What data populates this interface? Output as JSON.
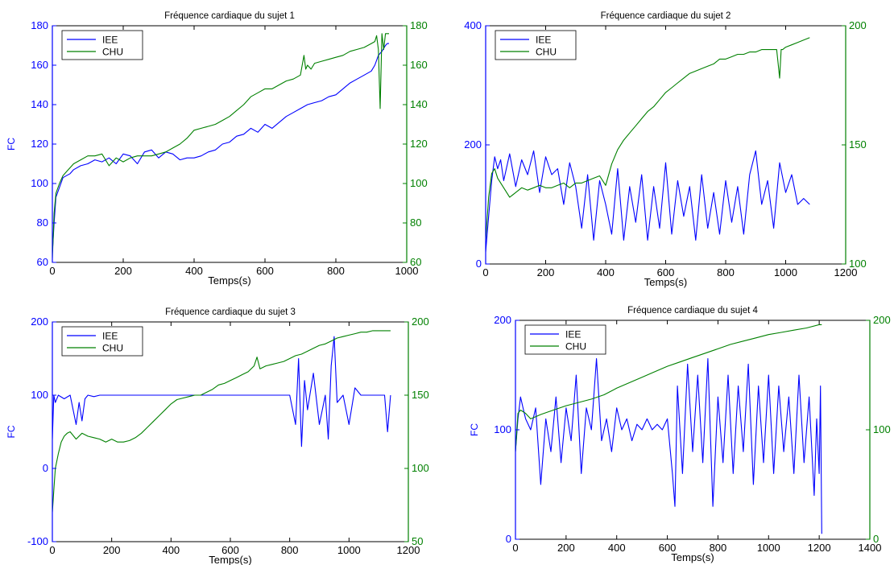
{
  "chart_data": [
    {
      "type": "line",
      "title": "Fréquence cardiaque du sujet 1",
      "xlabel": "Temps(s)",
      "ylabel": "FC",
      "xlim": [
        0,
        1000
      ],
      "xticks": [
        0,
        200,
        400,
        600,
        800,
        1000
      ],
      "ylim_left": [
        60,
        180
      ],
      "yticks_left": [
        60,
        80,
        100,
        120,
        140,
        160,
        180
      ],
      "ylim_right": [
        60,
        180
      ],
      "yticks_right": [
        60,
        80,
        100,
        120,
        140,
        160,
        180
      ],
      "legend_position": "top-left",
      "series": [
        {
          "name": "IEE",
          "axis": "left",
          "color": "#0000ff",
          "x": [
            0,
            5,
            10,
            20,
            30,
            40,
            50,
            60,
            80,
            100,
            120,
            140,
            160,
            180,
            200,
            220,
            240,
            260,
            280,
            300,
            320,
            340,
            360,
            380,
            400,
            420,
            440,
            460,
            480,
            500,
            520,
            540,
            560,
            580,
            600,
            620,
            640,
            660,
            680,
            700,
            720,
            740,
            760,
            780,
            800,
            820,
            840,
            860,
            880,
            900,
            910,
            920,
            930,
            940,
            945,
            950
          ],
          "y": [
            65,
            80,
            93,
            98,
            103,
            104,
            105,
            107,
            109,
            110,
            112,
            111,
            113,
            110,
            115,
            114,
            110,
            116,
            117,
            113,
            116,
            115,
            112,
            113,
            113,
            114,
            116,
            117,
            120,
            121,
            124,
            125,
            128,
            126,
            130,
            128,
            131,
            134,
            136,
            138,
            140,
            141,
            142,
            144,
            145,
            148,
            151,
            153,
            155,
            157,
            160,
            165,
            167,
            170,
            171,
            171
          ]
        },
        {
          "name": "CHU",
          "axis": "right",
          "color": "#008000",
          "x": [
            0,
            5,
            10,
            20,
            30,
            40,
            50,
            60,
            80,
            100,
            120,
            140,
            160,
            180,
            200,
            220,
            240,
            260,
            280,
            300,
            320,
            340,
            360,
            380,
            400,
            420,
            440,
            460,
            480,
            500,
            520,
            540,
            560,
            580,
            600,
            620,
            640,
            660,
            680,
            700,
            710,
            715,
            720,
            730,
            740,
            760,
            780,
            800,
            820,
            840,
            860,
            880,
            900,
            910,
            915,
            920,
            925,
            930,
            935,
            940,
            945,
            950
          ],
          "y": [
            62,
            85,
            95,
            100,
            104,
            106,
            108,
            110,
            112,
            114,
            114,
            115,
            109,
            113,
            111,
            113,
            114,
            114,
            114,
            115,
            116,
            118,
            120,
            123,
            127,
            128,
            129,
            130,
            132,
            134,
            137,
            140,
            144,
            146,
            148,
            148,
            150,
            152,
            153,
            155,
            165,
            158,
            160,
            158,
            161,
            162,
            163,
            164,
            165,
            167,
            168,
            169,
            171,
            172,
            175,
            168,
            138,
            176,
            168,
            176,
            176,
            176
          ]
        }
      ]
    },
    {
      "type": "line",
      "title": "Fréquence cardiaque du sujet 2",
      "xlabel": "Temps(s)",
      "ylabel": "",
      "xlim": [
        0,
        1200
      ],
      "xticks": [
        0,
        200,
        400,
        600,
        800,
        1000,
        1200
      ],
      "ylim_left": [
        0,
        400
      ],
      "yticks_left": [
        0,
        200,
        400
      ],
      "ylim_right": [
        100,
        200
      ],
      "yticks_right": [
        100,
        150,
        200
      ],
      "legend_position": "top-left",
      "series": [
        {
          "name": "IEE",
          "axis": "left",
          "color": "#0000ff",
          "x": [
            0,
            10,
            20,
            30,
            40,
            50,
            60,
            80,
            100,
            120,
            140,
            160,
            180,
            200,
            220,
            240,
            260,
            280,
            300,
            320,
            340,
            360,
            380,
            400,
            420,
            440,
            460,
            480,
            500,
            520,
            540,
            560,
            580,
            600,
            620,
            640,
            660,
            680,
            700,
            720,
            740,
            760,
            780,
            800,
            820,
            840,
            860,
            880,
            900,
            920,
            940,
            960,
            980,
            1000,
            1020,
            1040,
            1060,
            1080
          ],
          "y": [
            20,
            80,
            140,
            180,
            160,
            175,
            140,
            185,
            130,
            175,
            150,
            190,
            120,
            180,
            150,
            160,
            100,
            170,
            130,
            60,
            150,
            40,
            140,
            100,
            50,
            160,
            40,
            130,
            70,
            150,
            40,
            130,
            60,
            170,
            50,
            140,
            80,
            130,
            40,
            150,
            60,
            120,
            50,
            140,
            70,
            130,
            50,
            150,
            190,
            100,
            140,
            60,
            170,
            120,
            150,
            100,
            110,
            100
          ]
        },
        {
          "name": "CHU",
          "axis": "right",
          "color": "#008000",
          "x": [
            0,
            10,
            20,
            30,
            40,
            60,
            80,
            100,
            120,
            140,
            160,
            180,
            200,
            220,
            240,
            260,
            280,
            300,
            320,
            340,
            360,
            380,
            400,
            420,
            440,
            460,
            480,
            500,
            520,
            540,
            560,
            580,
            600,
            620,
            640,
            660,
            680,
            700,
            720,
            740,
            760,
            780,
            800,
            820,
            840,
            860,
            880,
            900,
            920,
            940,
            960,
            970,
            975,
            980,
            985,
            990,
            1000,
            1020,
            1040,
            1060,
            1080
          ],
          "y": [
            110,
            128,
            138,
            140,
            136,
            132,
            128,
            130,
            132,
            131,
            132,
            133,
            132,
            132,
            133,
            134,
            132,
            134,
            134,
            135,
            136,
            137,
            133,
            142,
            148,
            152,
            155,
            158,
            161,
            164,
            166,
            169,
            172,
            174,
            176,
            178,
            180,
            181,
            182,
            183,
            184,
            186,
            186,
            187,
            188,
            188,
            189,
            189,
            190,
            190,
            190,
            190,
            184,
            178,
            190,
            190,
            191,
            192,
            193,
            194,
            195
          ]
        }
      ]
    },
    {
      "type": "line",
      "title": "Fréquence cardiaque du sujet 3",
      "xlabel": "Temps(s)",
      "ylabel": "FC",
      "xlim": [
        0,
        1200
      ],
      "xticks": [
        0,
        200,
        400,
        600,
        800,
        1000,
        1200
      ],
      "ylim_left": [
        -100,
        200
      ],
      "yticks_left": [
        -100,
        0,
        100,
        200
      ],
      "ylim_right": [
        50,
        200
      ],
      "yticks_right": [
        50,
        100,
        150,
        200
      ],
      "legend_position": "top-left",
      "series": [
        {
          "name": "IEE",
          "axis": "left",
          "color": "#0000ff",
          "x": [
            0,
            5,
            10,
            20,
            40,
            60,
            80,
            90,
            100,
            110,
            120,
            140,
            160,
            200,
            300,
            400,
            500,
            600,
            700,
            800,
            820,
            830,
            840,
            850,
            860,
            880,
            900,
            920,
            930,
            940,
            950,
            960,
            980,
            1000,
            1020,
            1040,
            1060,
            1080,
            1100,
            1120,
            1130,
            1140
          ],
          "y": [
            40,
            100,
            90,
            100,
            95,
            100,
            60,
            90,
            65,
            95,
            100,
            98,
            100,
            100,
            100,
            100,
            100,
            100,
            100,
            100,
            60,
            150,
            30,
            120,
            80,
            130,
            60,
            100,
            40,
            140,
            180,
            90,
            100,
            60,
            110,
            100,
            100,
            100,
            100,
            100,
            50,
            100
          ]
        },
        {
          "name": "CHU",
          "axis": "right",
          "color": "#008000",
          "x": [
            0,
            5,
            10,
            20,
            30,
            40,
            50,
            60,
            80,
            100,
            120,
            140,
            160,
            180,
            200,
            220,
            240,
            260,
            280,
            300,
            320,
            340,
            360,
            380,
            400,
            420,
            440,
            460,
            480,
            500,
            520,
            540,
            560,
            580,
            600,
            620,
            640,
            660,
            680,
            690,
            700,
            720,
            740,
            760,
            780,
            800,
            820,
            840,
            860,
            880,
            900,
            920,
            940,
            960,
            980,
            1000,
            1020,
            1040,
            1060,
            1080,
            1100,
            1120,
            1140
          ],
          "y": [
            70,
            85,
            100,
            110,
            118,
            122,
            124,
            125,
            120,
            124,
            122,
            121,
            120,
            118,
            120,
            118,
            118,
            119,
            121,
            124,
            128,
            132,
            136,
            140,
            144,
            147,
            148,
            149,
            150,
            150,
            152,
            154,
            157,
            158,
            160,
            162,
            164,
            166,
            170,
            176,
            168,
            170,
            171,
            172,
            173,
            175,
            177,
            178,
            180,
            182,
            184,
            185,
            187,
            189,
            190,
            191,
            192,
            193,
            193,
            194,
            194,
            194,
            194
          ]
        }
      ]
    },
    {
      "type": "line",
      "title": "Fréquence cardiaque du sujet 4",
      "xlabel": "Temps(s)",
      "ylabel": "FC",
      "xlim": [
        0,
        1400
      ],
      "xticks": [
        0,
        200,
        400,
        600,
        800,
        1000,
        1200,
        1400
      ],
      "ylim_left": [
        0,
        200
      ],
      "yticks_left": [
        0,
        100,
        200
      ],
      "ylim_right": [
        0,
        200
      ],
      "yticks_right": [
        0,
        100,
        200
      ],
      "legend_position": "top-left",
      "series": [
        {
          "name": "IEE",
          "axis": "left",
          "color": "#0000ff",
          "x": [
            0,
            10,
            20,
            30,
            40,
            60,
            80,
            100,
            120,
            140,
            160,
            180,
            200,
            220,
            240,
            260,
            280,
            300,
            320,
            340,
            360,
            380,
            400,
            420,
            440,
            460,
            480,
            500,
            520,
            540,
            560,
            580,
            600,
            620,
            630,
            640,
            660,
            680,
            700,
            720,
            740,
            760,
            780,
            800,
            820,
            840,
            860,
            880,
            900,
            920,
            940,
            960,
            980,
            1000,
            1020,
            1040,
            1060,
            1080,
            1100,
            1120,
            1140,
            1160,
            1180,
            1190,
            1200,
            1205,
            1210
          ],
          "y": [
            80,
            110,
            130,
            120,
            110,
            100,
            120,
            50,
            110,
            80,
            130,
            70,
            120,
            90,
            150,
            60,
            120,
            100,
            165,
            90,
            110,
            80,
            120,
            100,
            110,
            90,
            105,
            100,
            110,
            100,
            105,
            100,
            110,
            60,
            30,
            140,
            60,
            160,
            80,
            150,
            70,
            165,
            30,
            130,
            70,
            150,
            60,
            140,
            80,
            160,
            50,
            140,
            70,
            150,
            60,
            140,
            80,
            130,
            60,
            150,
            70,
            130,
            40,
            110,
            60,
            140,
            5
          ]
        },
        {
          "name": "CHU",
          "axis": "right",
          "color": "#008000",
          "x": [
            0,
            10,
            20,
            40,
            60,
            80,
            100,
            150,
            200,
            250,
            300,
            350,
            400,
            450,
            500,
            550,
            600,
            650,
            700,
            750,
            800,
            850,
            900,
            950,
            1000,
            1050,
            1100,
            1150,
            1200,
            1210
          ],
          "y": [
            80,
            115,
            118,
            115,
            110,
            112,
            114,
            118,
            122,
            125,
            128,
            132,
            138,
            143,
            148,
            153,
            158,
            162,
            166,
            170,
            174,
            178,
            181,
            184,
            187,
            189,
            191,
            193,
            196,
            196
          ]
        }
      ]
    }
  ]
}
